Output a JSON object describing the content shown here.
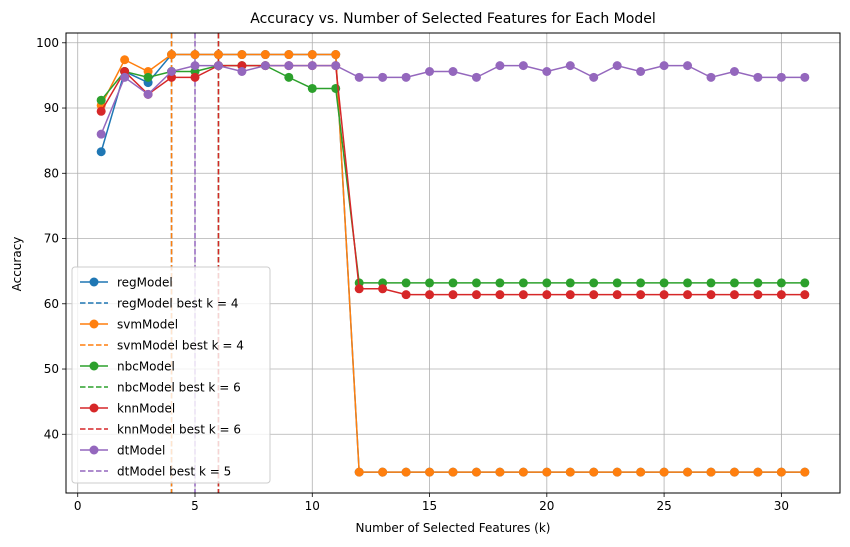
{
  "chart_data": {
    "type": "line",
    "title": "Accuracy vs. Number of Selected Features for Each Model",
    "xlabel": "Number of Selected Features (k)",
    "ylabel": "Accuracy",
    "xlim": [
      -0.5,
      32.5
    ],
    "ylim": [
      31.0,
      101.5
    ],
    "xticks": [
      0,
      5,
      10,
      15,
      20,
      25,
      30
    ],
    "yticks": [
      40,
      50,
      60,
      70,
      80,
      90,
      100
    ],
    "grid": true,
    "legend_position": "lower-left",
    "x": [
      1,
      2,
      3,
      4,
      5,
      6,
      7,
      8,
      9,
      10,
      11,
      12,
      13,
      14,
      15,
      16,
      17,
      18,
      19,
      20,
      21,
      22,
      23,
      24,
      25,
      26,
      27,
      28,
      29,
      30,
      31
    ],
    "series": [
      {
        "name": "regModel",
        "color": "#1f77b4",
        "best_label": "regModel best k = 4",
        "best_k": 4,
        "values": [
          83.3,
          95.6,
          93.9,
          98.2,
          98.2,
          98.2,
          98.2,
          98.2,
          98.2,
          98.2,
          98.2,
          34.2,
          34.2,
          34.2,
          34.2,
          34.2,
          34.2,
          34.2,
          34.2,
          34.2,
          34.2,
          34.2,
          34.2,
          34.2,
          34.2,
          34.2,
          34.2,
          34.2,
          34.2,
          34.2,
          34.2
        ]
      },
      {
        "name": "svmModel",
        "color": "#ff7f0e",
        "best_label": "svmModel best k = 4",
        "best_k": 4,
        "values": [
          90.4,
          97.4,
          95.6,
          98.2,
          98.2,
          98.2,
          98.2,
          98.2,
          98.2,
          98.2,
          98.2,
          34.2,
          34.2,
          34.2,
          34.2,
          34.2,
          34.2,
          34.2,
          34.2,
          34.2,
          34.2,
          34.2,
          34.2,
          34.2,
          34.2,
          34.2,
          34.2,
          34.2,
          34.2,
          34.2,
          34.2
        ]
      },
      {
        "name": "nbcModel",
        "color": "#2ca02c",
        "best_label": "nbcModel best k = 6",
        "best_k": 6,
        "values": [
          91.2,
          95.6,
          94.7,
          95.6,
          95.6,
          96.5,
          96.5,
          96.5,
          94.7,
          93.0,
          93.0,
          63.2,
          63.2,
          63.2,
          63.2,
          63.2,
          63.2,
          63.2,
          63.2,
          63.2,
          63.2,
          63.2,
          63.2,
          63.2,
          63.2,
          63.2,
          63.2,
          63.2,
          63.2,
          63.2,
          63.2
        ]
      },
      {
        "name": "knnModel",
        "color": "#d62728",
        "best_label": "knnModel best k = 6",
        "best_k": 6,
        "values": [
          89.5,
          95.6,
          92.1,
          94.7,
          94.7,
          96.5,
          96.5,
          96.5,
          96.5,
          96.5,
          96.5,
          62.3,
          62.3,
          61.4,
          61.4,
          61.4,
          61.4,
          61.4,
          61.4,
          61.4,
          61.4,
          61.4,
          61.4,
          61.4,
          61.4,
          61.4,
          61.4,
          61.4,
          61.4,
          61.4,
          61.4
        ]
      },
      {
        "name": "dtModel",
        "color": "#9467bd",
        "best_label": "dtModel best k = 5",
        "best_k": 5,
        "values": [
          86.0,
          94.7,
          92.1,
          95.6,
          96.5,
          96.5,
          95.6,
          96.5,
          96.5,
          96.5,
          96.5,
          94.7,
          94.7,
          94.7,
          95.6,
          95.6,
          94.7,
          96.5,
          96.5,
          95.6,
          96.5,
          94.7,
          96.5,
          95.6,
          96.5,
          96.5,
          94.7,
          95.6,
          94.7,
          94.7,
          94.7
        ]
      }
    ]
  }
}
